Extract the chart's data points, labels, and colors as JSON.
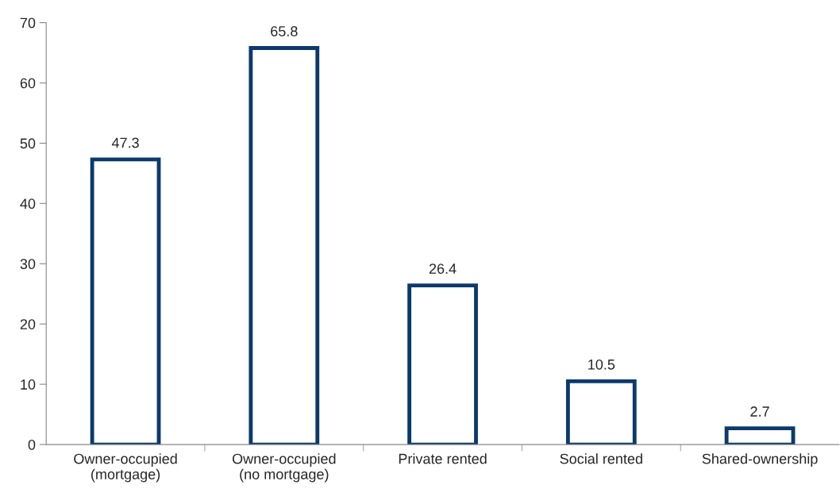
{
  "chart_data": {
    "type": "bar",
    "categories": [
      "Owner-occupied\n(mortgage)",
      "Owner-occupied\n(no mortgage)",
      "Private rented",
      "Social rented",
      "Shared-ownership"
    ],
    "values": [
      47.3,
      65.8,
      26.4,
      10.5,
      2.7
    ],
    "color": "#0b3a6b",
    "ylim": [
      0,
      70
    ],
    "yticks": [
      0,
      10,
      20,
      30,
      40,
      50,
      60,
      70
    ],
    "data_labels": true
  }
}
